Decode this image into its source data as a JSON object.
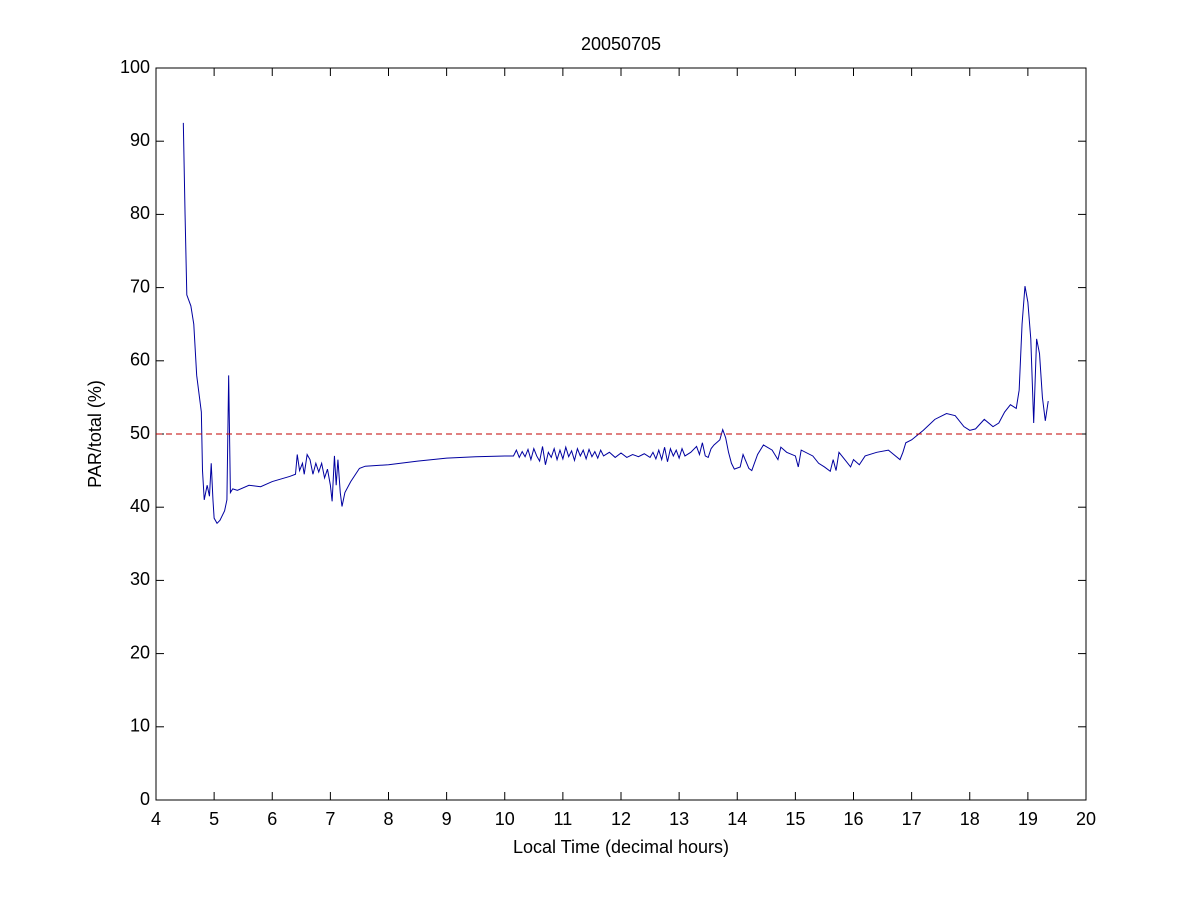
{
  "chart_data": {
    "type": "line",
    "title": "20050705",
    "x_label": "Local Time (decimal hours)",
    "y_label": "PAR/total (%)",
    "xlim": [
      4,
      20
    ],
    "ylim": [
      0,
      100
    ],
    "xticks": [
      4,
      5,
      6,
      7,
      8,
      9,
      10,
      11,
      12,
      13,
      14,
      15,
      16,
      17,
      18,
      19,
      20
    ],
    "yticks": [
      0,
      10,
      20,
      30,
      40,
      50,
      60,
      70,
      80,
      90,
      100
    ],
    "series": [
      {
        "color": "#0000a0",
        "x": [
          4.47,
          4.5,
          4.53,
          4.6,
          4.65,
          4.7,
          4.78,
          4.8,
          4.83,
          4.88,
          4.92,
          4.95,
          4.98,
          5.0,
          5.05,
          5.1,
          5.18,
          5.22,
          5.25,
          5.28,
          5.32,
          5.4,
          5.6,
          5.8,
          6.0,
          6.3,
          6.4,
          6.43,
          6.47,
          6.52,
          6.55,
          6.6,
          6.65,
          6.7,
          6.75,
          6.8,
          6.85,
          6.9,
          6.95,
          7.0,
          7.03,
          7.07,
          7.1,
          7.13,
          7.17,
          7.2,
          7.25,
          7.35,
          7.5,
          7.6,
          8.0,
          8.5,
          9.0,
          9.5,
          10.0,
          10.15,
          10.2,
          10.25,
          10.3,
          10.35,
          10.4,
          10.45,
          10.5,
          10.55,
          10.6,
          10.65,
          10.7,
          10.75,
          10.8,
          10.85,
          10.9,
          10.95,
          11.0,
          11.05,
          11.1,
          11.15,
          11.2,
          11.25,
          11.3,
          11.35,
          11.4,
          11.45,
          11.5,
          11.55,
          11.6,
          11.65,
          11.7,
          11.8,
          11.9,
          12.0,
          12.1,
          12.2,
          12.3,
          12.4,
          12.5,
          12.55,
          12.6,
          12.65,
          12.7,
          12.75,
          12.8,
          12.85,
          12.9,
          12.95,
          13.0,
          13.05,
          13.1,
          13.2,
          13.3,
          13.35,
          13.4,
          13.45,
          13.5,
          13.55,
          13.6,
          13.7,
          13.75,
          13.8,
          13.85,
          13.9,
          13.95,
          14.05,
          14.1,
          14.2,
          14.25,
          14.35,
          14.45,
          14.6,
          14.7,
          14.75,
          14.85,
          15.0,
          15.05,
          15.1,
          15.3,
          15.4,
          15.5,
          15.6,
          15.65,
          15.7,
          15.75,
          15.85,
          15.95,
          16.0,
          16.1,
          16.2,
          16.4,
          16.6,
          16.8,
          16.85,
          16.9,
          17.0,
          17.2,
          17.4,
          17.6,
          17.75,
          17.9,
          18.0,
          18.1,
          18.25,
          18.4,
          18.5,
          18.6,
          18.7,
          18.8,
          18.85,
          18.9,
          18.95,
          19.0,
          19.05,
          19.1,
          19.15,
          19.2,
          19.25,
          19.3,
          19.35
        ],
        "values": [
          92.5,
          80,
          69,
          67.5,
          65,
          58,
          53,
          45,
          41,
          43,
          41.5,
          46,
          41,
          38.5,
          37.8,
          38.2,
          39.5,
          41,
          58,
          42,
          42.5,
          42.3,
          43,
          42.8,
          43.5,
          44.2,
          44.5,
          47.2,
          45,
          46,
          44.5,
          47.2,
          46.5,
          44.5,
          46,
          44.8,
          46,
          44,
          45.2,
          43,
          40.8,
          47,
          43,
          46.5,
          42,
          40.1,
          42,
          43.5,
          45.3,
          45.6,
          45.8,
          46.3,
          46.7,
          46.9,
          47,
          47,
          47.8,
          46.8,
          47.6,
          46.9,
          47.9,
          46.5,
          48,
          47,
          46.3,
          48.3,
          45.8,
          47.5,
          46.8,
          48,
          46.5,
          47.8,
          46.6,
          48.2,
          46.9,
          47.7,
          46.4,
          48,
          47,
          47.8,
          46.6,
          47.9,
          46.9,
          47.6,
          46.7,
          47.8,
          47,
          47.5,
          46.8,
          47.4,
          46.8,
          47.2,
          46.9,
          47.3,
          46.8,
          47.5,
          46.6,
          47.8,
          46.5,
          48.2,
          46.2,
          48,
          47,
          47.8,
          46.7,
          48,
          47,
          47.5,
          48.3,
          47.2,
          48.8,
          47,
          46.8,
          48,
          48.5,
          49.2,
          50.6,
          49.5,
          47.5,
          46,
          45.2,
          45.5,
          47.2,
          45.3,
          45,
          47.2,
          48.5,
          47.8,
          46.5,
          48.2,
          47.5,
          47,
          45.5,
          47.8,
          47,
          46,
          45.5,
          44.9,
          46.5,
          45,
          47.5,
          46.5,
          45.5,
          46.5,
          45.8,
          47,
          47.5,
          47.8,
          46.5,
          47.5,
          48.8,
          49.2,
          50.5,
          52,
          52.8,
          52.5,
          51,
          50.5,
          50.7,
          52,
          51,
          51.5,
          53,
          54,
          53.5,
          56,
          65,
          70.2,
          68,
          63,
          51.5,
          63,
          61,
          55,
          51.8,
          54.5
        ]
      },
      {
        "color": "#c00000",
        "style": "dashed",
        "x": [
          4,
          20
        ],
        "values": [
          50,
          50
        ]
      }
    ]
  }
}
